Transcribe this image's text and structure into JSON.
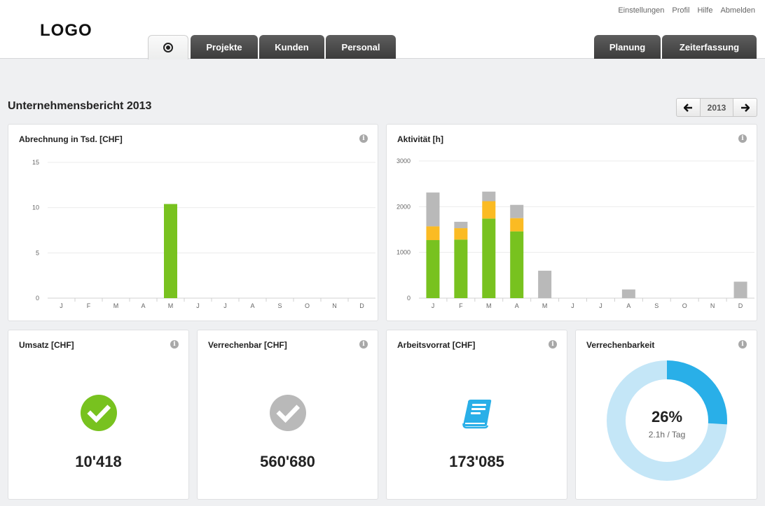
{
  "header": {
    "logo": "LOGO",
    "links": [
      "Einstellungen",
      "Profil",
      "Hilfe",
      "Abmelden"
    ]
  },
  "tabs": {
    "projects": "Projekte",
    "customers": "Kunden",
    "staff": "Personal",
    "planning": "Planung",
    "timetracking": "Zeiterfassung"
  },
  "page": {
    "title": "Unternehmensbericht 2013",
    "year": "2013"
  },
  "cards": {
    "billing": {
      "title": "Abrechnung in Tsd. [CHF]"
    },
    "activity": {
      "title": "Aktivität [h]"
    },
    "revenue": {
      "title": "Umsatz [CHF]",
      "value": "10'418",
      "icon": "check-circle-icon"
    },
    "billable": {
      "title": "Verrechenbar [CHF]",
      "value": "560'680",
      "icon": "check-circle-icon"
    },
    "backlog": {
      "title": "Arbeitsvorrat [CHF]",
      "value": "173'085",
      "icon": "book-icon"
    },
    "billability": {
      "title": "Verrechenbarkeit",
      "percent": "26%",
      "sub": "2.1h / Tag",
      "fraction": 0.26
    }
  },
  "colors": {
    "green": "#78c21f",
    "orange": "#fbbb23",
    "gray": "#b9b9b9",
    "blue": "#29afe8",
    "lightblue": "#c4e6f7"
  },
  "chart_data": [
    {
      "type": "bar",
      "title": "Abrechnung in Tsd. [CHF]",
      "categories": [
        "J",
        "F",
        "M",
        "A",
        "M",
        "J",
        "J",
        "A",
        "S",
        "O",
        "N",
        "D"
      ],
      "values": [
        0,
        0,
        0,
        0,
        10.4,
        0,
        0,
        0,
        0,
        0,
        0,
        0
      ],
      "ylim": [
        0,
        15
      ],
      "yticks": [
        0,
        5,
        10,
        15
      ],
      "grid": true
    },
    {
      "type": "bar",
      "stacked": true,
      "title": "Aktivität [h]",
      "categories": [
        "J",
        "F",
        "M",
        "A",
        "M",
        "J",
        "J",
        "A",
        "S",
        "O",
        "N",
        "D"
      ],
      "series": [
        {
          "values": [
            1270,
            1280,
            1740,
            1460,
            0,
            0,
            0,
            0,
            0,
            0,
            0,
            0
          ]
        },
        {
          "values": [
            300,
            250,
            380,
            290,
            0,
            0,
            0,
            0,
            0,
            0,
            0,
            0
          ]
        },
        {
          "values": [
            740,
            140,
            210,
            290,
            600,
            0,
            0,
            190,
            0,
            0,
            0,
            360
          ]
        }
      ],
      "ylim": [
        0,
        3000
      ],
      "yticks": [
        0,
        1000,
        2000,
        3000
      ],
      "grid": true
    }
  ]
}
